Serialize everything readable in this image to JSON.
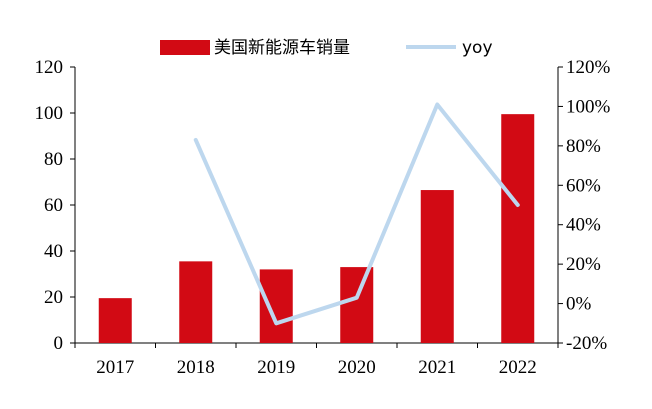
{
  "chart_data": {
    "type": "bar+line",
    "title": "",
    "xlabel": "",
    "ylabel": "",
    "categories": [
      "2017",
      "2018",
      "2019",
      "2020",
      "2021",
      "2022"
    ],
    "series": [
      {
        "name": "美国新能源车销量",
        "type": "bar",
        "axis": "left",
        "color": "#d20a14",
        "values": [
          19.5,
          35.5,
          32,
          33,
          66.5,
          99.5
        ]
      },
      {
        "name": "yoy",
        "type": "line",
        "axis": "right",
        "color": "#bdd7ee",
        "values": [
          null,
          83,
          -10,
          3,
          101,
          50
        ]
      }
    ],
    "y_left": {
      "ylim": [
        0,
        120
      ],
      "ticks": [
        0,
        20,
        40,
        60,
        80,
        100,
        120
      ],
      "tick_labels": [
        "0",
        "20",
        "40",
        "60",
        "80",
        "100",
        "120"
      ]
    },
    "y_right": {
      "ylim": [
        -20,
        120
      ],
      "ticks": [
        -20,
        0,
        20,
        40,
        60,
        80,
        100,
        120
      ],
      "tick_labels": [
        "-20%",
        "0%",
        "20%",
        "40%",
        "60%",
        "80%",
        "100%",
        "120%"
      ]
    },
    "grid": false,
    "legend": {
      "placement": "top-center"
    }
  }
}
